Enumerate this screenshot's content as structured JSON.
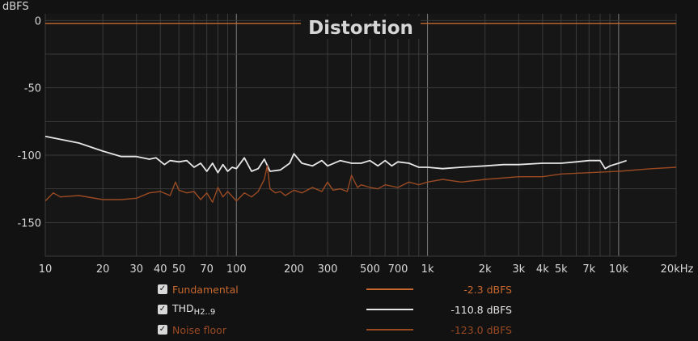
{
  "chart_data": {
    "type": "line",
    "title": "Distortion",
    "ylabel": "dBFS",
    "xscale": "log",
    "xlim": [
      10,
      20000
    ],
    "ylim": [
      -175,
      5
    ],
    "xticks": [
      {
        "v": 10,
        "label": "10"
      },
      {
        "v": 20,
        "label": "20"
      },
      {
        "v": 30,
        "label": "30"
      },
      {
        "v": 40,
        "label": "40"
      },
      {
        "v": 50,
        "label": "50"
      },
      {
        "v": 70,
        "label": "70"
      },
      {
        "v": 100,
        "label": "100"
      },
      {
        "v": 200,
        "label": "200"
      },
      {
        "v": 300,
        "label": "300"
      },
      {
        "v": 500,
        "label": "500"
      },
      {
        "v": 700,
        "label": "700"
      },
      {
        "v": 1000,
        "label": "1k"
      },
      {
        "v": 2000,
        "label": "2k"
      },
      {
        "v": 3000,
        "label": "3k"
      },
      {
        "v": 4000,
        "label": "4k"
      },
      {
        "v": 5000,
        "label": "5k"
      },
      {
        "v": 7000,
        "label": "7k"
      },
      {
        "v": 10000,
        "label": "10k"
      },
      {
        "v": 20000,
        "label": "20kHz"
      }
    ],
    "yticks": [
      {
        "v": 0,
        "label": "0"
      },
      {
        "v": -50,
        "label": "-50"
      },
      {
        "v": -100,
        "label": "-100"
      },
      {
        "v": -150,
        "label": "-150"
      }
    ],
    "grid": true,
    "legend_position": "bottom",
    "series": [
      {
        "name": "Fundamental",
        "color": "#c8682e",
        "x": [
          10,
          20000
        ],
        "y": [
          -2.3,
          -2.3
        ]
      },
      {
        "name": "THD",
        "name_sub": "H2..9",
        "color": "#e6e6e6",
        "x": [
          10,
          15,
          20,
          25,
          30,
          35,
          38,
          42,
          45,
          50,
          55,
          60,
          65,
          70,
          75,
          80,
          85,
          90,
          95,
          100,
          110,
          120,
          130,
          140,
          150,
          170,
          190,
          200,
          220,
          250,
          280,
          300,
          350,
          400,
          450,
          500,
          550,
          600,
          650,
          700,
          800,
          900,
          1000,
          1200,
          1500,
          2000,
          2500,
          3000,
          4000,
          5000,
          6000,
          7000,
          8000,
          8500,
          9000,
          10000,
          11000
        ],
        "y": [
          -86,
          -91,
          -97,
          -101,
          -101,
          -103,
          -102,
          -107,
          -104,
          -105,
          -104,
          -109,
          -106,
          -112,
          -106,
          -113,
          -107,
          -112,
          -109,
          -110,
          -102,
          -112,
          -110,
          -103,
          -112,
          -111,
          -106,
          -99,
          -106,
          -108,
          -104,
          -108,
          -104,
          -106,
          -106,
          -104,
          -108,
          -104,
          -108,
          -105,
          -106,
          -109,
          -109,
          -110,
          -109,
          -108,
          -107,
          -107,
          -106,
          -106,
          -105,
          -104,
          -104,
          -110,
          -108,
          -106,
          -104
        ]
      },
      {
        "name": "Noise floor",
        "color": "#9a4a22",
        "x": [
          10,
          11,
          12,
          15,
          20,
          25,
          30,
          35,
          40,
          45,
          48,
          50,
          55,
          60,
          65,
          70,
          75,
          80,
          85,
          90,
          100,
          110,
          120,
          130,
          140,
          145,
          150,
          160,
          170,
          180,
          200,
          220,
          250,
          280,
          300,
          320,
          350,
          380,
          400,
          430,
          450,
          500,
          550,
          600,
          700,
          800,
          900,
          1000,
          1200,
          1500,
          2000,
          3000,
          4000,
          5000,
          7000,
          10000,
          15000,
          20000
        ],
        "y": [
          -134,
          -128,
          -131,
          -130,
          -133,
          -133,
          -132,
          -128,
          -127,
          -130,
          -120,
          -126,
          -128,
          -127,
          -133,
          -128,
          -135,
          -124,
          -131,
          -127,
          -134,
          -128,
          -131,
          -127,
          -118,
          -108,
          -125,
          -128,
          -127,
          -130,
          -126,
          -128,
          -124,
          -127,
          -120,
          -126,
          -125,
          -127,
          -115,
          -124,
          -122,
          -124,
          -125,
          -122,
          -124,
          -120,
          -122,
          -120,
          -118,
          -120,
          -118,
          -116,
          -116,
          -114,
          -113,
          -112,
          -110,
          -109
        ]
      }
    ]
  },
  "legend": [
    {
      "label": "Fundamental",
      "sub": "",
      "value": "-2.3 dBFS",
      "color": "#c8682e",
      "checked": "✓"
    },
    {
      "label": "THD",
      "sub": "H2..9",
      "value": "-110.8 dBFS",
      "color": "#e6e6e6",
      "checked": "✓"
    },
    {
      "label": "Noise floor",
      "sub": "",
      "value": "-123.0 dBFS",
      "color": "#9a4a22",
      "checked": "✓"
    }
  ],
  "colors": {
    "background": "#121212",
    "plot_background": "#161616",
    "grid_major": "#777777",
    "grid_minor": "#3a3a3a"
  }
}
